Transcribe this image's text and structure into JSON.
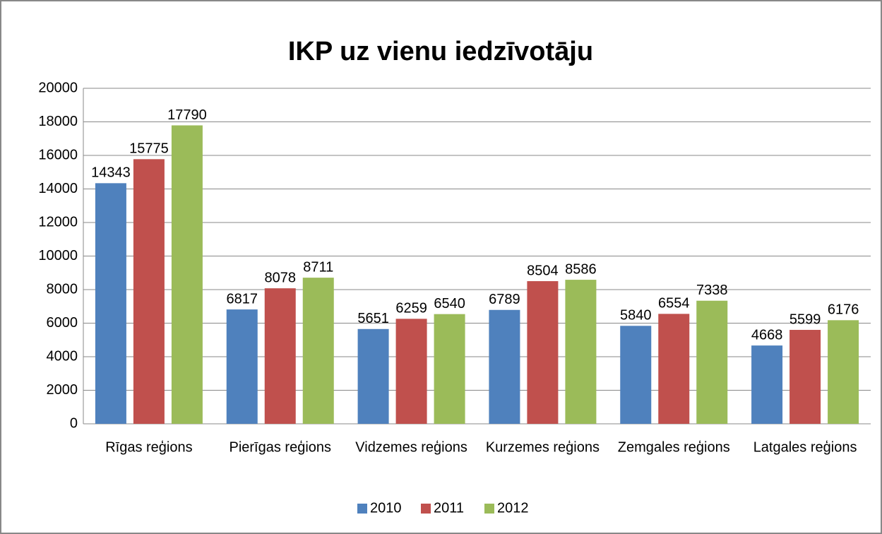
{
  "chart_data": {
    "type": "bar",
    "title": "IKP uz vienu iedzīvotāju",
    "categories": [
      "Rīgas reģions",
      "Pierīgas reģions",
      "Vidzemes reģions",
      "Kurzemes reģions",
      "Zemgales reģions",
      "Latgales reģions"
    ],
    "series": [
      {
        "name": "2010",
        "color": "#4f81bd",
        "values": [
          14343,
          6817,
          5651,
          6789,
          5840,
          4668
        ]
      },
      {
        "name": "2011",
        "color": "#c0504d",
        "values": [
          15775,
          8078,
          6259,
          8504,
          6554,
          5599
        ]
      },
      {
        "name": "2012",
        "color": "#9bbb59",
        "values": [
          17790,
          8711,
          6540,
          8586,
          7338,
          6176
        ]
      }
    ],
    "ylim": [
      0,
      20000
    ],
    "yticks": [
      0,
      2000,
      4000,
      6000,
      8000,
      10000,
      12000,
      14000,
      16000,
      18000,
      20000
    ],
    "grid": true,
    "legend": "bottom"
  }
}
